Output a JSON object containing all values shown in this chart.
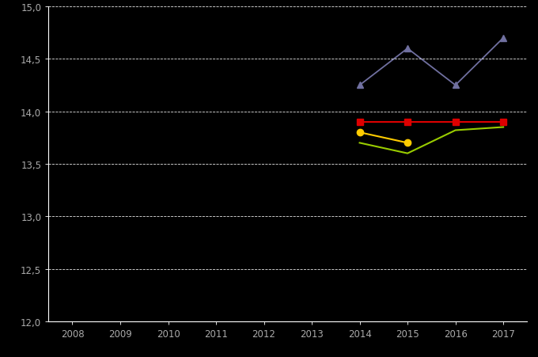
{
  "x_ticks": [
    2008,
    2009,
    2010,
    2011,
    2012,
    2013,
    2014,
    2015,
    2016,
    2017
  ],
  "series": [
    {
      "name": "blue_triangle",
      "color": "#7070a0",
      "marker": "^",
      "markersize": 6,
      "linewidth": 1.3,
      "x": [
        2014,
        2015,
        2016,
        2017
      ],
      "y": [
        14.25,
        14.6,
        14.25,
        14.7
      ]
    },
    {
      "name": "red_square",
      "color": "#dd0000",
      "marker": "s",
      "markersize": 6,
      "linewidth": 1.5,
      "x": [
        2014,
        2015,
        2016,
        2017
      ],
      "y": [
        13.9,
        13.9,
        13.9,
        13.9
      ]
    },
    {
      "name": "yellow_circle",
      "color": "#ffcc00",
      "marker": "o",
      "markersize": 6,
      "linewidth": 1.5,
      "x": [
        2014,
        2015
      ],
      "y": [
        13.8,
        13.7
      ]
    },
    {
      "name": "green_line",
      "color": "#99cc00",
      "marker": "",
      "markersize": 0,
      "linewidth": 1.5,
      "x": [
        2014,
        2015,
        2016,
        2017
      ],
      "y": [
        13.7,
        13.6,
        13.82,
        13.85
      ]
    }
  ],
  "ylim": [
    12.0,
    15.0
  ],
  "yticks": [
    12.0,
    12.5,
    13.0,
    13.5,
    14.0,
    14.5,
    15.0
  ],
  "xlim": [
    2007.5,
    2017.5
  ],
  "background_color": "#000000",
  "grid_color": "#ffffff",
  "spine_color": "#ffffff",
  "tick_label_color": "#aaaaaa",
  "figsize": [
    6.8,
    4.52
  ],
  "dpi": 100
}
